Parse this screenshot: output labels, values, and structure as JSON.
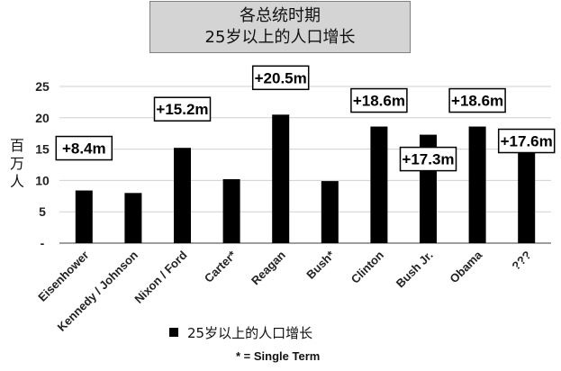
{
  "chart_data": {
    "type": "bar",
    "title": "各总统时期",
    "subtitle": "25岁以上的人口增长",
    "ylabel": "百万人",
    "xlabel": "",
    "ylim": [
      0,
      25
    ],
    "yticks": [
      "-",
      "5",
      "10",
      "15",
      "20",
      "25"
    ],
    "grid": true,
    "categories": [
      "Eisenhower",
      "Kennedy / Johnson",
      "Nixon / Ford",
      "Carter*",
      "Reagan",
      "Bush*",
      "Clinton",
      "Bush Jr.",
      "Obama",
      "???"
    ],
    "series": [
      {
        "name": "25岁以上的人口增长",
        "values": [
          8.4,
          8.0,
          15.2,
          10.2,
          20.5,
          9.9,
          18.6,
          17.3,
          18.6,
          17.6
        ]
      }
    ],
    "data_labels": [
      "+8.4m",
      "",
      "+15.2m",
      "",
      "+20.5m",
      "",
      "+18.6m",
      "+17.3m",
      "+18.6m",
      "+17.6m"
    ],
    "legend_position": "bottom",
    "footnote": "* = Single Term",
    "colors": {
      "bar": "#000000",
      "grid": "#d0d0d0",
      "axis": "#7f7f7f",
      "title_bg": "#d4d4d4"
    }
  }
}
